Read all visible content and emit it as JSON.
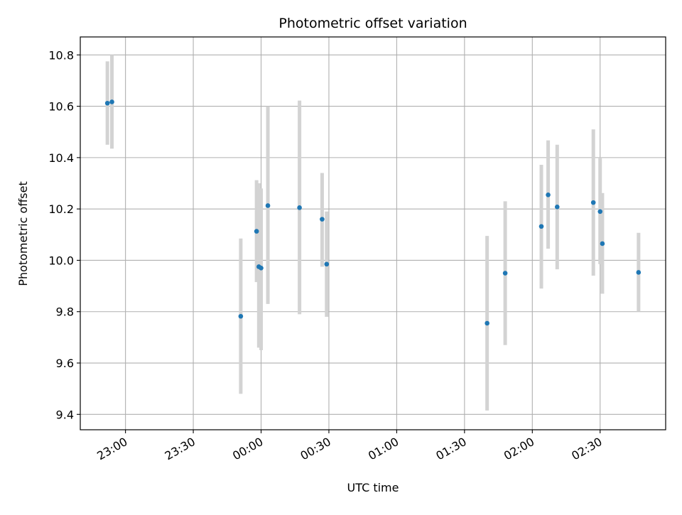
{
  "chart_data": {
    "type": "scatter",
    "title": "Photometric offset variation",
    "xlabel": "UTC time",
    "ylabel": "Photometric offset",
    "x_ticks": [
      "23:00",
      "23:30",
      "00:00",
      "00:30",
      "01:00",
      "01:30",
      "02:00",
      "02:30"
    ],
    "y_ticks": [
      "9.4",
      "9.6",
      "9.8",
      "10.0",
      "10.2",
      "10.4",
      "10.6",
      "10.8"
    ],
    "xlim": [
      "22:40",
      "02:59"
    ],
    "ylim": [
      9.34,
      10.87
    ],
    "grid": true,
    "colors": {
      "marker": "#1f77b4",
      "errorbar": "#d3d3d3",
      "grid": "#b0b0b0"
    },
    "points": [
      {
        "x": "22:52",
        "y": 10.612,
        "yerr_low": 10.45,
        "yerr_high": 10.775
      },
      {
        "x": "22:54",
        "y": 10.617,
        "yerr_low": 10.435,
        "yerr_high": 10.8
      },
      {
        "x": "23:51",
        "y": 9.782,
        "yerr_low": 9.48,
        "yerr_high": 10.085
      },
      {
        "x": "23:58",
        "y": 10.113,
        "yerr_low": 9.915,
        "yerr_high": 10.312
      },
      {
        "x": "23:59",
        "y": 9.975,
        "yerr_low": 9.66,
        "yerr_high": 10.3
      },
      {
        "x": "00:00",
        "y": 9.97,
        "yerr_low": 9.65,
        "yerr_high": 10.28
      },
      {
        "x": "00:03",
        "y": 10.213,
        "yerr_low": 9.83,
        "yerr_high": 10.6
      },
      {
        "x": "00:17",
        "y": 10.205,
        "yerr_low": 9.79,
        "yerr_high": 10.622
      },
      {
        "x": "00:27",
        "y": 10.16,
        "yerr_low": 9.975,
        "yerr_high": 10.34
      },
      {
        "x": "00:29",
        "y": 9.985,
        "yerr_low": 9.78,
        "yerr_high": 10.19
      },
      {
        "x": "01:40",
        "y": 9.755,
        "yerr_low": 9.415,
        "yerr_high": 10.095
      },
      {
        "x": "01:48",
        "y": 9.95,
        "yerr_low": 9.67,
        "yerr_high": 10.23
      },
      {
        "x": "02:04",
        "y": 10.132,
        "yerr_low": 9.89,
        "yerr_high": 10.372
      },
      {
        "x": "02:07",
        "y": 10.255,
        "yerr_low": 10.045,
        "yerr_high": 10.467
      },
      {
        "x": "02:11",
        "y": 10.208,
        "yerr_low": 9.965,
        "yerr_high": 10.45
      },
      {
        "x": "02:27",
        "y": 10.225,
        "yerr_low": 9.94,
        "yerr_high": 10.51
      },
      {
        "x": "02:30",
        "y": 10.19,
        "yerr_low": 9.985,
        "yerr_high": 10.4
      },
      {
        "x": "02:31",
        "y": 10.065,
        "yerr_low": 9.87,
        "yerr_high": 10.262
      },
      {
        "x": "02:47",
        "y": 9.953,
        "yerr_low": 9.8,
        "yerr_high": 10.107
      }
    ]
  }
}
